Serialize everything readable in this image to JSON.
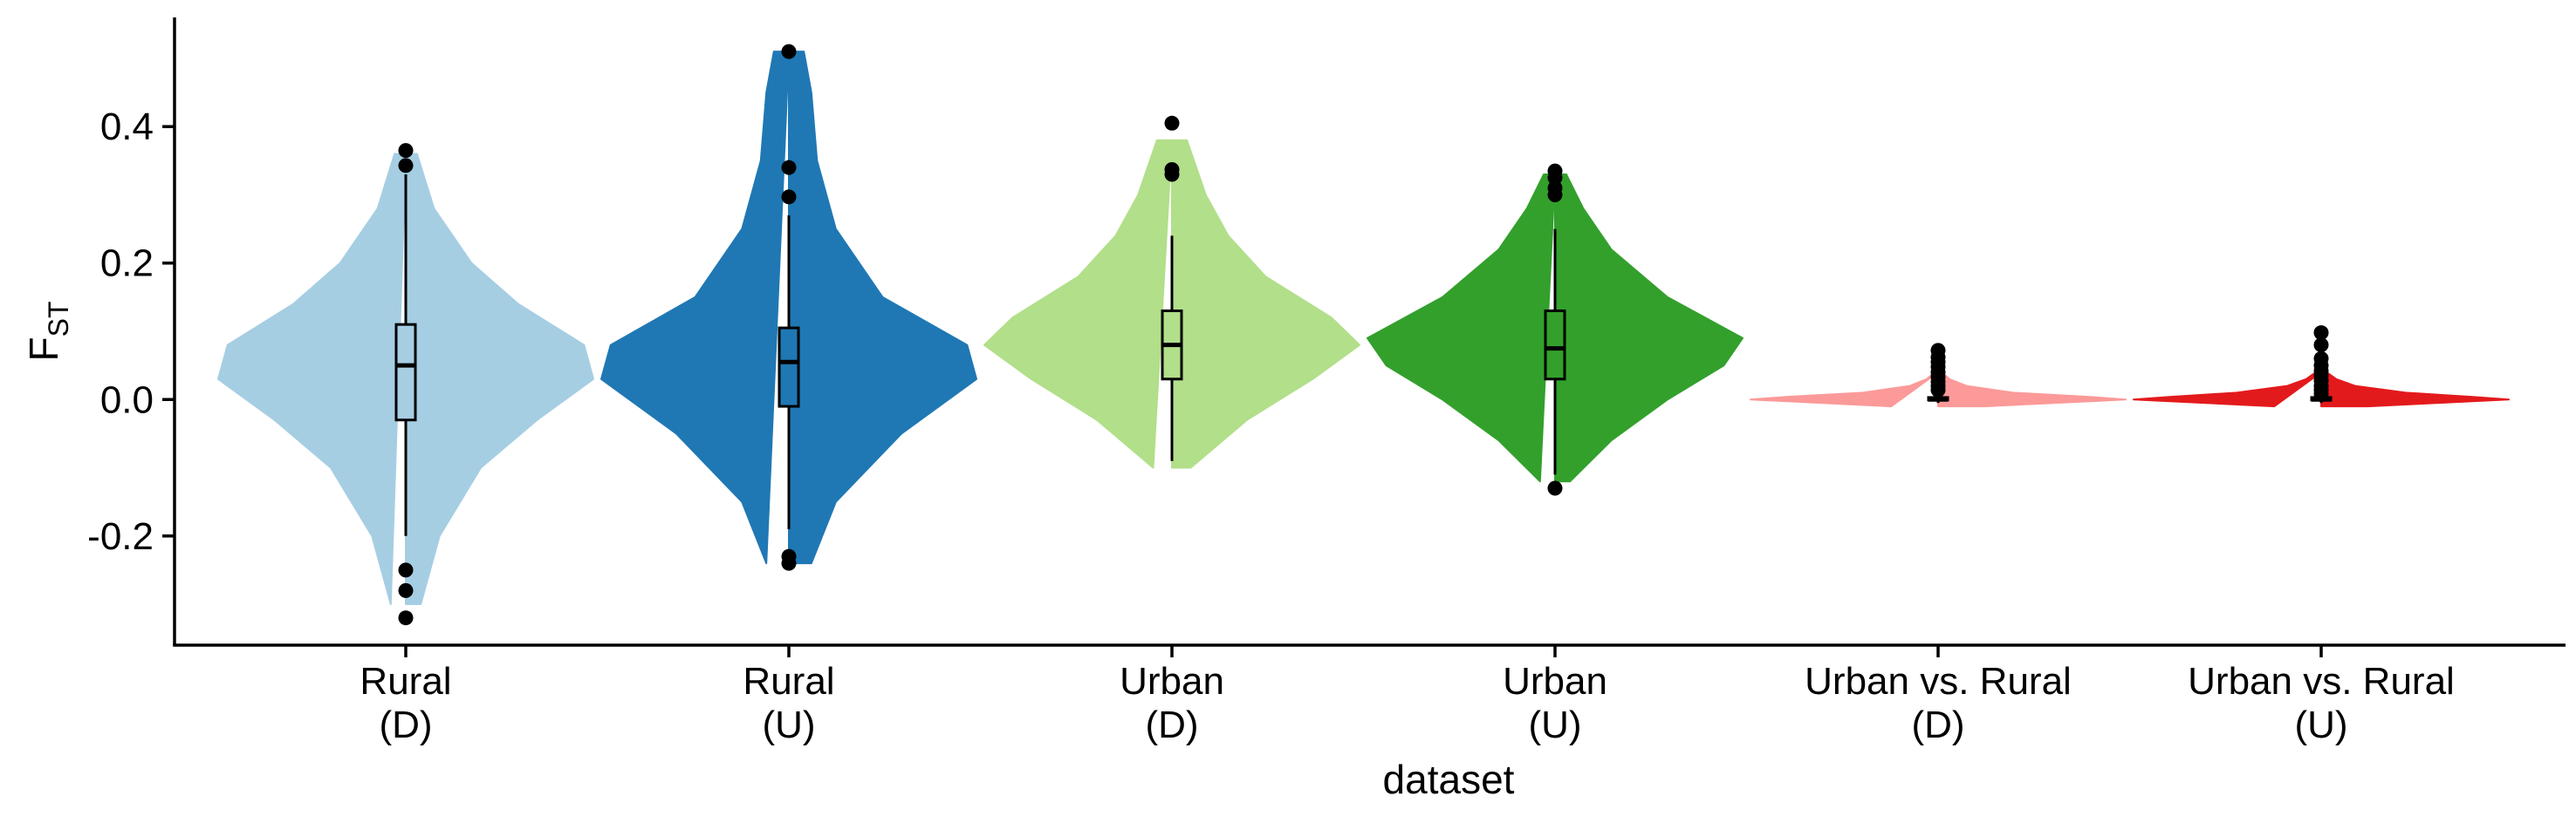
{
  "chart_data": {
    "type": "violin",
    "xlabel": "dataset",
    "ylabel_main": "F",
    "ylabel_sub": "ST",
    "ylim": [
      -0.36,
      0.56
    ],
    "yticks": [
      -0.2,
      0.0,
      0.2,
      0.4
    ],
    "ytick_labels": [
      "-0.2",
      "0.0",
      "0.2",
      "0.4"
    ],
    "grid": false,
    "legend": "none",
    "categories": [
      {
        "label_line1": "Rural",
        "label_line2": "(D)",
        "color": "#A6CEE3",
        "q1": -0.03,
        "median": 0.05,
        "q3": 0.11,
        "whisker_low": -0.2,
        "whisker_high": 0.33,
        "violin_min": -0.3,
        "violin_max": 0.36,
        "outliers": [
          0.365,
          0.343,
          -0.25,
          -0.28,
          -0.32
        ],
        "density": [
          [
            -0.3,
            0.08
          ],
          [
            -0.2,
            0.18
          ],
          [
            -0.1,
            0.4
          ],
          [
            -0.03,
            0.7
          ],
          [
            0.03,
            1.0
          ],
          [
            0.08,
            0.95
          ],
          [
            0.14,
            0.6
          ],
          [
            0.2,
            0.35
          ],
          [
            0.28,
            0.15
          ],
          [
            0.36,
            0.06
          ]
        ]
      },
      {
        "label_line1": "Rural",
        "label_line2": "(U)",
        "color": "#1F78B4",
        "q1": -0.01,
        "median": 0.055,
        "q3": 0.105,
        "whisker_low": -0.19,
        "whisker_high": 0.27,
        "violin_min": -0.24,
        "violin_max": 0.51,
        "outliers": [
          0.51,
          0.34,
          0.297,
          -0.23,
          -0.24
        ],
        "density": [
          [
            -0.24,
            0.12
          ],
          [
            -0.15,
            0.25
          ],
          [
            -0.05,
            0.6
          ],
          [
            0.03,
            1.0
          ],
          [
            0.08,
            0.95
          ],
          [
            0.15,
            0.5
          ],
          [
            0.25,
            0.25
          ],
          [
            0.35,
            0.15
          ],
          [
            0.45,
            0.12
          ],
          [
            0.51,
            0.08
          ]
        ]
      },
      {
        "label_line1": "Urban",
        "label_line2": "(D)",
        "color": "#B2DF8A",
        "q1": 0.03,
        "median": 0.08,
        "q3": 0.13,
        "whisker_low": -0.09,
        "whisker_high": 0.24,
        "violin_min": -0.1,
        "violin_max": 0.38,
        "outliers": [
          0.405,
          0.337,
          0.33
        ],
        "density": [
          [
            -0.1,
            0.1
          ],
          [
            -0.03,
            0.4
          ],
          [
            0.03,
            0.75
          ],
          [
            0.08,
            1.0
          ],
          [
            0.12,
            0.85
          ],
          [
            0.18,
            0.5
          ],
          [
            0.24,
            0.3
          ],
          [
            0.3,
            0.18
          ],
          [
            0.38,
            0.08
          ]
        ]
      },
      {
        "label_line1": "Urban",
        "label_line2": "(U)",
        "color": "#33A02C",
        "q1": 0.03,
        "median": 0.075,
        "q3": 0.13,
        "whisker_low": -0.11,
        "whisker_high": 0.25,
        "violin_min": -0.12,
        "violin_max": 0.33,
        "outliers": [
          0.335,
          0.325,
          0.31,
          0.3,
          -0.13
        ],
        "density": [
          [
            -0.12,
            0.08
          ],
          [
            -0.06,
            0.3
          ],
          [
            0.0,
            0.6
          ],
          [
            0.05,
            0.9
          ],
          [
            0.09,
            1.0
          ],
          [
            0.15,
            0.6
          ],
          [
            0.22,
            0.3
          ],
          [
            0.28,
            0.15
          ],
          [
            0.33,
            0.06
          ]
        ]
      },
      {
        "label_line1": "Urban vs. Rural",
        "label_line2": "(D)",
        "color": "#FB9A99",
        "q1": 0.0,
        "median": 0.0,
        "q3": 0.003,
        "whisker_low": -0.005,
        "whisker_high": 0.005,
        "violin_min": -0.01,
        "violin_max": 0.04,
        "outliers": [
          0.072,
          0.062,
          0.055,
          0.048,
          0.04,
          0.033,
          0.026,
          0.02,
          0.014
        ],
        "density": [
          [
            -0.01,
            0.25
          ],
          [
            -0.004,
            0.7
          ],
          [
            0.0,
            1.0
          ],
          [
            0.004,
            0.8
          ],
          [
            0.01,
            0.4
          ],
          [
            0.02,
            0.15
          ],
          [
            0.03,
            0.06
          ],
          [
            0.04,
            0.02
          ]
        ]
      },
      {
        "label_line1": "Urban vs. Rural",
        "label_line2": "(U)",
        "color": "#E31A1C",
        "q1": 0.0,
        "median": 0.0,
        "q3": 0.003,
        "whisker_low": -0.005,
        "whisker_high": 0.006,
        "violin_min": -0.01,
        "violin_max": 0.04,
        "outliers": [
          0.098,
          0.08,
          0.06,
          0.05,
          0.042,
          0.035,
          0.028,
          0.02,
          0.014,
          0.008
        ],
        "density": [
          [
            -0.01,
            0.25
          ],
          [
            -0.004,
            0.7
          ],
          [
            0.0,
            1.0
          ],
          [
            0.004,
            0.8
          ],
          [
            0.01,
            0.45
          ],
          [
            0.02,
            0.18
          ],
          [
            0.03,
            0.08
          ],
          [
            0.04,
            0.03
          ]
        ]
      }
    ]
  }
}
